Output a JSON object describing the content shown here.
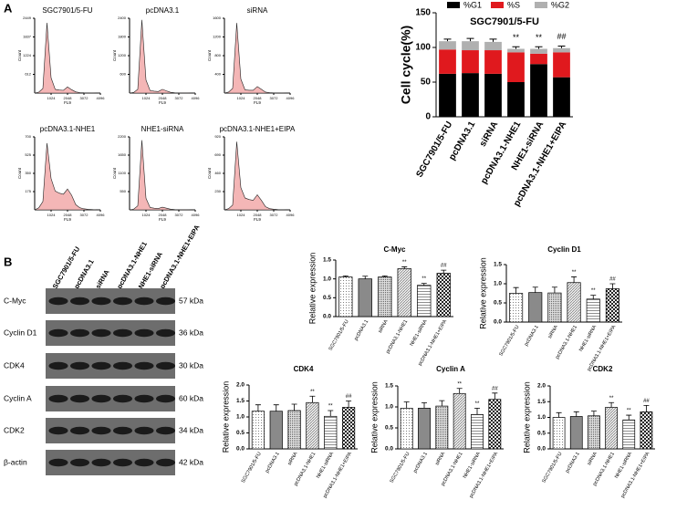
{
  "panels": [
    "A",
    "B"
  ],
  "western_blot": {
    "lanes": [
      "SGC7901/5-FU",
      "pcDNA3.1",
      "siRNA",
      "pcDNA3.1-NHE1",
      "NHE1-siRNA",
      "pcDNA3.1-NHE1+EIPA"
    ],
    "proteins": [
      {
        "name": "C-Myc",
        "size": "57 kDa"
      },
      {
        "name": "Cyclin D1",
        "size": "36 kDa"
      },
      {
        "name": "CDK4",
        "size": "30 kDa"
      },
      {
        "name": "Cyclin A",
        "size": "60 kDa"
      },
      {
        "name": "CDK2",
        "size": "34 kDa"
      },
      {
        "name": "β-actin",
        "size": "42 kDa"
      }
    ]
  },
  "chart_data": [
    {
      "type": "area",
      "title": "SGC7901/5-FU",
      "x_label": "FL9",
      "y_label": "Count",
      "color": "#f4b6b6",
      "x": [
        0,
        256,
        512,
        768,
        1024,
        1280,
        1536,
        1792,
        2048,
        2304,
        2560,
        2816,
        3072,
        3328,
        3584,
        3840,
        4096
      ],
      "values": [
        0,
        30,
        150,
        2300,
        500,
        120,
        100,
        90,
        200,
        110,
        40,
        15,
        8,
        5,
        3,
        0,
        0
      ],
      "xlim": [
        0,
        4096
      ],
      "xticks": [
        1024,
        2048,
        3072,
        4096
      ],
      "ylim": [
        0,
        2449
      ],
      "yticks": [
        612,
        1224,
        1837,
        2449
      ]
    },
    {
      "type": "area",
      "title": "pcDNA3.1",
      "x_label": "FL9",
      "y_label": "Count",
      "color": "#f4b6b6",
      "x": [
        0,
        256,
        512,
        768,
        1024,
        1280,
        1536,
        1792,
        2048,
        2304,
        2560,
        2816,
        3072,
        3328,
        3584,
        3840,
        4096
      ],
      "values": [
        0,
        20,
        120,
        2350,
        420,
        80,
        60,
        50,
        120,
        70,
        25,
        10,
        5,
        3,
        2,
        0,
        0
      ],
      "xlim": [
        0,
        4096
      ],
      "xticks": [
        1024,
        2048,
        3072,
        4096
      ],
      "ylim": [
        0,
        2400
      ],
      "yticks": [
        600,
        1200,
        1800,
        2400
      ]
    },
    {
      "type": "area",
      "title": "siRNA",
      "x_label": "FL9",
      "y_label": "Count",
      "color": "#f4b6b6",
      "x": [
        0,
        256,
        512,
        768,
        1024,
        1280,
        1536,
        1792,
        2048,
        2304,
        2560,
        2816,
        3072,
        3328,
        3584,
        3840,
        4096
      ],
      "values": [
        0,
        20,
        100,
        1500,
        300,
        70,
        60,
        60,
        140,
        80,
        20,
        10,
        5,
        3,
        2,
        0,
        0
      ],
      "xlim": [
        0,
        4096
      ],
      "xticks": [
        1024,
        2048,
        3072,
        4096
      ],
      "ylim": [
        0,
        1600
      ],
      "yticks": [
        400,
        800,
        1200,
        1600
      ]
    },
    {
      "type": "area",
      "title": "pcDNA3.1-NHE1",
      "x_label": "FL9",
      "y_label": "Count",
      "color": "#f4b6b6",
      "x": [
        0,
        256,
        512,
        768,
        1024,
        1280,
        1536,
        1792,
        2048,
        2304,
        2560,
        2816,
        3072,
        3328,
        3584,
        3840,
        4096
      ],
      "values": [
        0,
        20,
        80,
        640,
        300,
        180,
        160,
        150,
        200,
        140,
        50,
        20,
        10,
        5,
        3,
        0,
        0
      ],
      "xlim": [
        0,
        4096
      ],
      "xticks": [
        1024,
        2048,
        3072,
        4096
      ],
      "ylim": [
        0,
        700
      ],
      "yticks": [
        175,
        350,
        525,
        700
      ]
    },
    {
      "type": "area",
      "title": "NHE1-siRNA",
      "x_label": "FL9",
      "y_label": "Count",
      "color": "#f4b6b6",
      "x": [
        0,
        256,
        512,
        768,
        1024,
        1280,
        1536,
        1792,
        2048,
        2304,
        2560,
        2816,
        3072,
        3328,
        3584,
        3840,
        4096
      ],
      "values": [
        0,
        20,
        120,
        2100,
        350,
        70,
        50,
        40,
        80,
        50,
        20,
        10,
        5,
        3,
        2,
        0,
        0
      ],
      "xlim": [
        0,
        4096
      ],
      "xticks": [
        1024,
        2048,
        3072,
        4096
      ],
      "ylim": [
        0,
        2200
      ],
      "yticks": [
        550,
        1100,
        1650,
        2200
      ]
    },
    {
      "type": "area",
      "title": "pcDNA3.1-NHE1+EIPA",
      "x_label": "FL9",
      "y_label": "Count",
      "color": "#f4b6b6",
      "x": [
        0,
        256,
        512,
        768,
        1024,
        1280,
        1536,
        1792,
        2048,
        2304,
        2560,
        2816,
        3072,
        3328,
        3584,
        3840,
        4096
      ],
      "values": [
        0,
        15,
        60,
        860,
        280,
        150,
        130,
        120,
        190,
        120,
        40,
        15,
        8,
        4,
        2,
        0,
        0
      ],
      "xlim": [
        0,
        4096
      ],
      "xticks": [
        1024,
        2048,
        3072,
        4096
      ],
      "ylim": [
        0,
        920
      ],
      "yticks": [
        230,
        460,
        690,
        920
      ]
    },
    {
      "type": "stacked-bar",
      "title": "SGC7901/5-FU",
      "y_label": "Cell cycle(%)",
      "categories": [
        "SGC7901/5-FU",
        "pcDNA3.1",
        "siRNA",
        "pcDNA3.1-NHE1",
        "NHE1-siRNA",
        "pcDNA3.1-NHE1+EIPA"
      ],
      "series": [
        {
          "name": "%G1",
          "color": "#000000",
          "values": [
            62,
            63,
            62,
            50,
            76,
            57
          ]
        },
        {
          "name": "%S",
          "color": "#e0191e",
          "values": [
            35,
            33,
            34,
            43,
            15,
            36
          ]
        },
        {
          "name": "%G2",
          "color": "#b0b0b0",
          "values": [
            12,
            13,
            12,
            5,
            7,
            6
          ],
          "errors": [
            3,
            4,
            4,
            3,
            3,
            3
          ]
        }
      ],
      "annotations": [
        null,
        null,
        null,
        "**",
        "**",
        "##"
      ],
      "ylim": [
        0,
        150
      ],
      "yticks": [
        0,
        50,
        100,
        150
      ]
    },
    {
      "type": "bar",
      "title": "C-Myc",
      "y_label": "Relative expression",
      "categories": [
        "SGC7901/5-FU",
        "pcDNA3.1",
        "siRNA",
        "pcDNA3.1-NHE1",
        "NHE1-siRNA",
        "pcDNA3.1-NHE1+EIPA"
      ],
      "values": [
        1.05,
        1.0,
        1.05,
        1.27,
        0.83,
        1.15
      ],
      "errors": [
        0.03,
        0.07,
        0.03,
        0.05,
        0.05,
        0.08
      ],
      "annotations": [
        null,
        null,
        null,
        "**",
        "**",
        "##"
      ],
      "bar_styles": [
        "dots",
        "gray",
        "fine-dots",
        "stripes",
        "hlines",
        "checks"
      ],
      "ylim": [
        0,
        1.5
      ],
      "yticks": [
        {
          "value": 0,
          "label": "0.0"
        },
        {
          "value": 0.5,
          "label": "0.5"
        },
        {
          "value": 1,
          "label": "1.0"
        },
        {
          "value": 1.5,
          "label": "1.5"
        }
      ]
    },
    {
      "type": "bar",
      "title": "Cyclin D1",
      "y_label": "Relative expression",
      "categories": [
        "SGC7901/5-FU",
        "pcDNA3.1",
        "siRNA",
        "pcDNA3.1-NHE1",
        "NHE1-siRNA",
        "pcDNA3.1-NHE1+EIPA"
      ],
      "values": [
        0.75,
        0.77,
        0.76,
        1.03,
        0.6,
        0.87
      ],
      "errors": [
        0.15,
        0.14,
        0.15,
        0.15,
        0.1,
        0.13
      ],
      "annotations": [
        null,
        null,
        null,
        "**",
        "**",
        "##"
      ],
      "bar_styles": [
        "dots",
        "gray",
        "fine-dots",
        "stripes",
        "hlines",
        "checks"
      ],
      "ylim": [
        0,
        1.5
      ],
      "yticks": [
        {
          "value": 0,
          "label": "0.0"
        },
        {
          "value": 0.5,
          "label": "0.5"
        },
        {
          "value": 1,
          "label": "1.0"
        },
        {
          "value": 1.5,
          "label": "1.5"
        }
      ]
    },
    {
      "type": "bar",
      "title": "CDK4",
      "y_label": "Relative expression",
      "categories": [
        "SGC7901/5-FU",
        "pcDNA3.1",
        "siRNA",
        "pcDNA3.1-NHE1",
        "NHE1-siRNA",
        "pcDNA3.1-NHE1+EIPA"
      ],
      "values": [
        1.18,
        1.18,
        1.2,
        1.45,
        1.02,
        1.3
      ],
      "errors": [
        0.2,
        0.2,
        0.2,
        0.2,
        0.18,
        0.2
      ],
      "annotations": [
        null,
        null,
        null,
        "**",
        "**",
        "##"
      ],
      "bar_styles": [
        "dots",
        "gray",
        "fine-dots",
        "stripes",
        "hlines",
        "checks"
      ],
      "ylim": [
        0,
        2
      ],
      "yticks": [
        {
          "value": 0,
          "label": "0.0"
        },
        {
          "value": 0.5,
          "label": "0.5"
        },
        {
          "value": 1,
          "label": "1.0"
        },
        {
          "value": 1.5,
          "label": "1.5"
        },
        {
          "value": 2,
          "label": "2.0"
        }
      ]
    },
    {
      "type": "bar",
      "title": "Cyclin A",
      "y_label": "Relative expression",
      "categories": [
        "SGC7901/5-FU",
        "pcDNA3.1",
        "siRNA",
        "pcDNA3.1-NHE1",
        "NHE1-siRNA",
        "pcDNA3.1-NHE1+EIPA"
      ],
      "values": [
        0.97,
        0.97,
        1.02,
        1.32,
        0.82,
        1.18
      ],
      "errors": [
        0.15,
        0.13,
        0.13,
        0.12,
        0.15,
        0.15
      ],
      "annotations": [
        null,
        null,
        null,
        "**",
        "**",
        "##"
      ],
      "bar_styles": [
        "dots",
        "gray",
        "fine-dots",
        "stripes",
        "hlines",
        "checks"
      ],
      "ylim": [
        0,
        1.5
      ],
      "yticks": [
        {
          "value": 0,
          "label": "0.0"
        },
        {
          "value": 0.5,
          "label": "0.5"
        },
        {
          "value": 1,
          "label": "1.0"
        },
        {
          "value": 1.5,
          "label": "1.5"
        }
      ]
    },
    {
      "type": "bar",
      "title": "CDK2",
      "y_label": "Relative expression",
      "categories": [
        "SGC7901/5-FU",
        "pcDNA3.1",
        "siRNA",
        "pcDNA3.1-NHE1",
        "NHE1-siRNA",
        "pcDNA3.1-NHE1+EIPA"
      ],
      "values": [
        1.0,
        1.03,
        1.05,
        1.32,
        0.92,
        1.18
      ],
      "errors": [
        0.15,
        0.15,
        0.15,
        0.15,
        0.15,
        0.2
      ],
      "annotations": [
        null,
        null,
        null,
        "**",
        "**",
        "##"
      ],
      "bar_styles": [
        "dots",
        "gray",
        "fine-dots",
        "stripes",
        "hlines",
        "checks"
      ],
      "ylim": [
        0,
        2
      ],
      "yticks": [
        {
          "value": 0,
          "label": "0.0"
        },
        {
          "value": 0.5,
          "label": "0.5"
        },
        {
          "value": 1,
          "label": "1.0"
        },
        {
          "value": 1.5,
          "label": "1.5"
        },
        {
          "value": 2,
          "label": "2.0"
        }
      ]
    }
  ]
}
